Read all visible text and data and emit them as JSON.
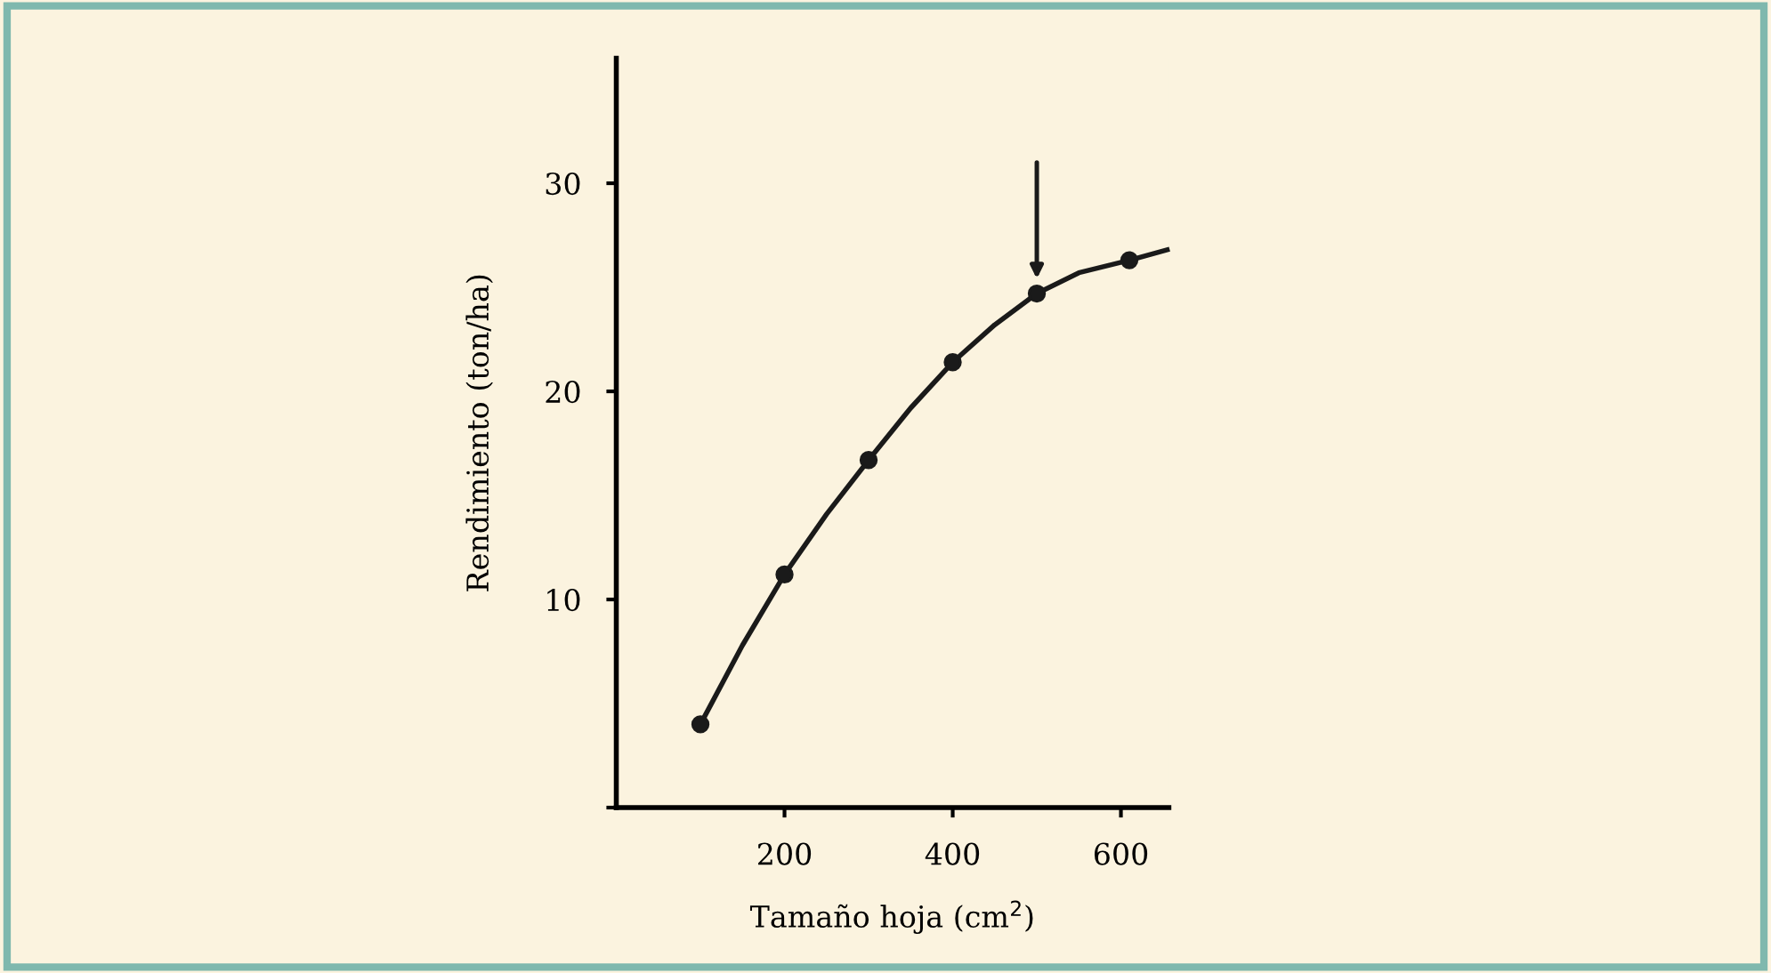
{
  "chart_data": {
    "type": "scatter",
    "xlabel": "Tamaño hoja (cm$^{2}$)",
    "ylabel": "Rendimiento (ton/ha)",
    "series": [
      {
        "color": "#1a1a1a",
        "marker": "circle",
        "x": [
          100,
          200,
          300,
          400,
          500,
          610
        ],
        "values": [
          4.0,
          11.2,
          16.7,
          21.4,
          24.7,
          26.3
        ]
      },
      {
        "type": "line",
        "color": "#1a1a1a",
        "marker": "none",
        "x": [
          100,
          150,
          200,
          250,
          300,
          350,
          400,
          450,
          500,
          550,
          610,
          655
        ],
        "values": [
          4.0,
          7.8,
          11.2,
          14.1,
          16.7,
          19.2,
          21.4,
          23.2,
          24.7,
          25.7,
          26.3,
          26.8
        ]
      }
    ],
    "xlim": [
      0,
      657
    ],
    "xticks": [
      200,
      400,
      600
    ],
    "ylim": [
      0,
      36
    ],
    "yticks": [
      {
        "value": 0,
        "label": null
      },
      10,
      20,
      30
    ],
    "grid": false,
    "legend": false
  }
}
